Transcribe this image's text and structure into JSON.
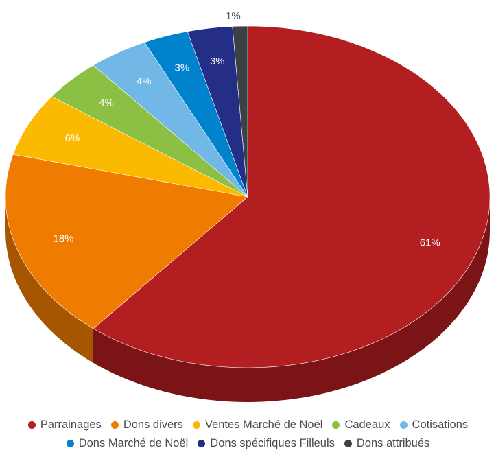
{
  "chart_data": {
    "type": "pie",
    "style": "3d",
    "start": "top, clockwise",
    "legend_position": "bottom",
    "slices": [
      {
        "label": "Parrainages",
        "value": 61,
        "data_label": "61%",
        "color": "#b31f20",
        "side_color": "#7b1416"
      },
      {
        "label": "Dons divers",
        "value": 18,
        "data_label": "18%",
        "color": "#ef7c00",
        "side_color": "#a65600"
      },
      {
        "label": "Ventes Marché de Noël",
        "value": 6,
        "data_label": "6%",
        "color": "#fbb900",
        "side_color": "#b08200"
      },
      {
        "label": "Cadeaux",
        "value": 4,
        "data_label": "4%",
        "color": "#8cc044",
        "side_color": "#5f8a2c"
      },
      {
        "label": "Cotisations",
        "value": 4,
        "data_label": "4%",
        "color": "#71b8e6",
        "side_color": "#4c86ab"
      },
      {
        "label": "Dons Marché de Noël",
        "value": 3,
        "data_label": "3%",
        "color": "#0182cc",
        "side_color": "#005a8e"
      },
      {
        "label": "Dons spécifiques Filleuls",
        "value": 3,
        "data_label": "3%",
        "color": "#242e86",
        "side_color": "#161d5c"
      },
      {
        "label": "Dons attribués",
        "value": 1,
        "data_label": "1%",
        "color": "#3c4146",
        "side_color": "#25292c"
      }
    ]
  }
}
